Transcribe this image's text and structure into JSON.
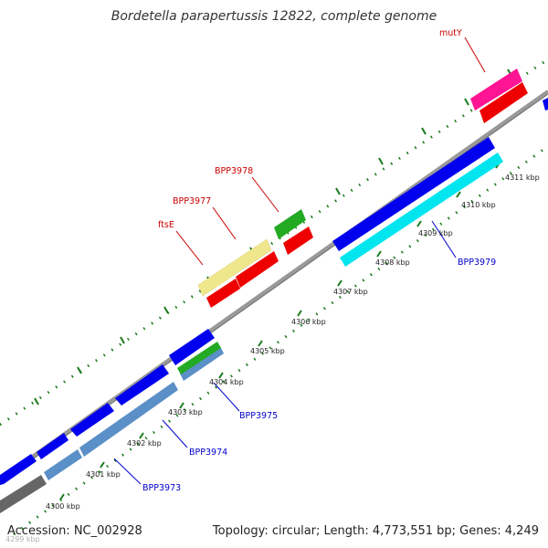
{
  "title": "Bordetella parapertussis 12822, complete genome",
  "footer": {
    "accession": "Accession: NC_002928",
    "summary": "Topology: circular; Length: 4,773,551 bp; Genes: 4,249"
  },
  "scale_labels": [
    "4299 kbp",
    "4300 kbp",
    "4301 kbp",
    "4302 kbp",
    "4303 kbp",
    "4304 kbp",
    "4305 kbp",
    "4306 kbp",
    "4307 kbp",
    "4308 kbp",
    "4309 kbp",
    "4310 kbp",
    "4311 kbp"
  ],
  "gene_labels": {
    "top": [
      {
        "name": "mutY",
        "color": "#cc0000"
      },
      {
        "name": "BPP3978",
        "color": "#cc0000"
      },
      {
        "name": "BPP3977",
        "color": "#cc0000"
      },
      {
        "name": "ftsE",
        "color": "#cc0000"
      }
    ],
    "bottom": [
      {
        "name": "BPP3979",
        "color": "#0000cc"
      },
      {
        "name": "BPP3975",
        "color": "#0000cc"
      },
      {
        "name": "BPP3974",
        "color": "#0000cc"
      },
      {
        "name": "BPP3973",
        "color": "#0000cc"
      }
    ]
  },
  "colors": {
    "forward_cds": "#0000ee",
    "reverse_cds": "#ee0000",
    "gc_skew_dots": "#1a7a1a",
    "backbone": "#999999",
    "yellow_gene": "#f0e68c",
    "cyan_gene": "#00ffff",
    "steel_gene": "#5b8fc7",
    "magenta_gene": "#ff1493",
    "green_gene": "#22aa22",
    "gray_gene": "#666666"
  }
}
